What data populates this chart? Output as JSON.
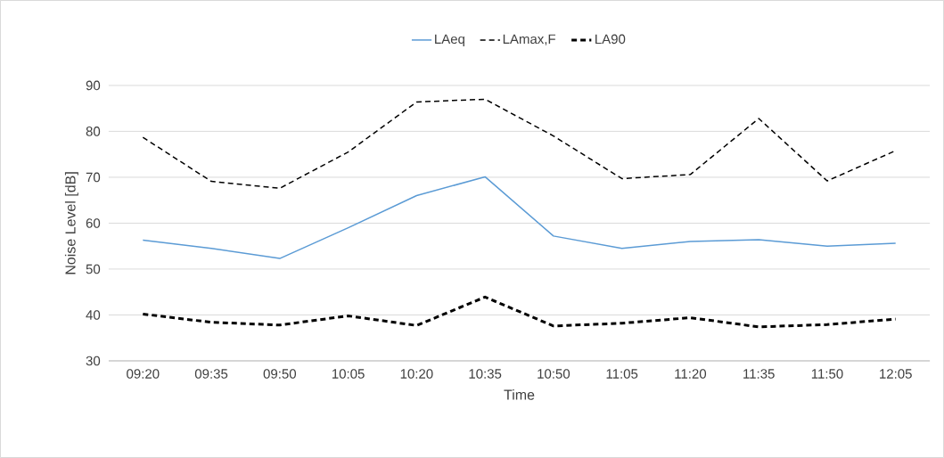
{
  "chart_data": {
    "type": "line",
    "xlabel": "Time",
    "ylabel": "Noise Level [dB]",
    "categories": [
      "09:20",
      "09:35",
      "09:50",
      "10:05",
      "10:20",
      "10:35",
      "10:50",
      "11:05",
      "11:20",
      "11:35",
      "11:50",
      "12:05"
    ],
    "series": [
      {
        "name": "LAeq",
        "color": "#5b9bd5",
        "line_style": "solid",
        "values": [
          56.3,
          54.5,
          52.3,
          59,
          66,
          70.1,
          57.2,
          54.5,
          56,
          56.4,
          55,
          55.6
        ]
      },
      {
        "name": "LAmax,F",
        "color": "#000000",
        "line_style": "dashed",
        "values": [
          78.7,
          69.1,
          67.6,
          75.5,
          86.4,
          87,
          79,
          69.7,
          70.6,
          82.8,
          69.2,
          75.8
        ]
      },
      {
        "name": "LA90",
        "color": "#000000",
        "line_style": "dashed",
        "values": [
          40.2,
          38.4,
          37.8,
          39.8,
          37.7,
          43.9,
          37.6,
          38.2,
          39.4,
          37.4,
          37.9,
          39.1
        ]
      }
    ],
    "ylim": [
      30,
      90
    ],
    "yticks": [
      30,
      40,
      50,
      60,
      70,
      80,
      90
    ],
    "grid": "y",
    "legend": "top",
    "marker": "none"
  }
}
